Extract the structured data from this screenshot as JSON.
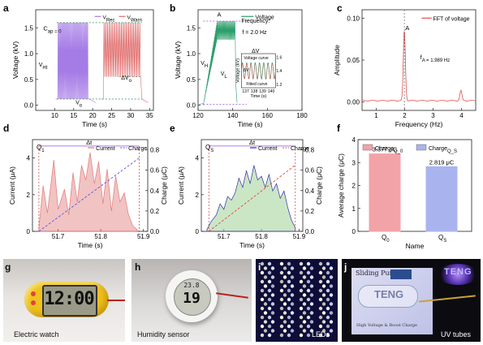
{
  "panels": {
    "a": {
      "letter": "a"
    },
    "b": {
      "letter": "b"
    },
    "c": {
      "letter": "c"
    },
    "d": {
      "letter": "d"
    },
    "e": {
      "letter": "e"
    },
    "f": {
      "letter": "f"
    },
    "g": {
      "letter": "g",
      "caption": "Electric watch",
      "display": "12:00"
    },
    "h": {
      "letter": "h",
      "caption": "Humidity sensor",
      "display_top": "23.8",
      "display_main": "19"
    },
    "i": {
      "letter": "i",
      "caption": "LEDs"
    },
    "j": {
      "letter": "j",
      "caption": "UV tubes",
      "card_title": "Sliding Pump",
      "card_seal": "TENG",
      "card_footer": "High Voltage & Boost Charge",
      "tube_label": "TENG"
    }
  },
  "chart_data": [
    {
      "id": "a",
      "type": "line",
      "xlabel": "Time (s)",
      "ylabel": "Voltage (kV)",
      "xlim": [
        5,
        36
      ],
      "ylim": [
        -0.1,
        1.85
      ],
      "xticks": [
        "10",
        "15",
        "20",
        "25",
        "30",
        "35"
      ],
      "yticks": [
        "0.0",
        "0.5",
        "1.0",
        "1.5"
      ],
      "series": [
        {
          "name": "V_Rec",
          "color": "#a57ce6",
          "segment": [
            10.8,
            18.8
          ],
          "baseline": 0.12,
          "peak": 1.6,
          "cycles": 40
        },
        {
          "name": "V_Warn",
          "color": "#e06a6a",
          "segment": [
            22.8,
            32.6
          ],
          "baseline": 0.55,
          "peak": 1.6,
          "cycles": 30
        }
      ],
      "annotations": [
        "C_ap = 0",
        "V_Ht",
        "V_o",
        "ΔV_o"
      ]
    },
    {
      "id": "b",
      "type": "line",
      "xlabel": "Time (s)",
      "ylabel": "Voltage (kV)",
      "xlim": [
        120,
        180
      ],
      "ylim": [
        -0.1,
        1.85
      ],
      "xticks": [
        "120",
        "140",
        "160",
        "180"
      ],
      "yticks": [
        "0.0",
        "0.5",
        "1.0",
        "1.5"
      ],
      "series": [
        {
          "name": "Voltage",
          "color": "#2e9e6b",
          "rise_start": 123.0,
          "rise_end": 131.0,
          "plateau": 1.45,
          "amplitude": 0.18,
          "end": 141.5
        }
      ],
      "annotations": [
        "A",
        "Frequency:",
        "f = 2.0 Hz",
        "ΔV",
        "V_H",
        "V_L"
      ],
      "inset": {
        "xlabel": "Time (s)",
        "ylabel": "Voltage (kV)",
        "xticks": [
          "137",
          "138",
          "139",
          "140"
        ],
        "yticks": [
          "1.2",
          "1.4",
          "1.6"
        ],
        "xlim": [
          136.5,
          140.5
        ],
        "ylim": [
          1.15,
          1.65
        ],
        "legend": [
          "Voltage curve",
          "Fitted curve"
        ],
        "annotation": "ΔV"
      }
    },
    {
      "id": "c",
      "type": "line",
      "xlabel": "Frequency (Hz)",
      "ylabel": "Amplitude",
      "xlim": [
        0.5,
        4.5
      ],
      "ylim": [
        -0.01,
        0.11
      ],
      "xticks": [
        "1",
        "2",
        "3",
        "4"
      ],
      "yticks": [
        "0.00",
        "0.05",
        "0.10"
      ],
      "series": [
        {
          "name": "FFT of voltage",
          "color": "#e05050",
          "peaks": [
            [
              1.989,
              0.085
            ],
            [
              3.98,
              0.012
            ]
          ]
        }
      ],
      "annotations": [
        "A",
        "f_A = 1.989 Hz"
      ]
    },
    {
      "id": "d",
      "type": "area",
      "xlabel": "Time (s)",
      "ylabel": "Current (μA)",
      "y2label": "Charge (μC)",
      "xlim": [
        51.64,
        51.91
      ],
      "ylim": [
        0,
        5
      ],
      "y2lim": [
        0,
        0.9
      ],
      "xticks": [
        "51.7",
        "51.8",
        "51.9"
      ],
      "yticks": [
        "0",
        "2",
        "4"
      ],
      "y2ticks": [
        "0.0",
        "0.2",
        "0.4",
        "0.6",
        "0.8"
      ],
      "series": [
        {
          "name": "Current",
          "color": "#e07a7a",
          "values": [
            [
              51.655,
              0.2
            ],
            [
              51.665,
              2.5
            ],
            [
              51.675,
              1.0
            ],
            [
              51.69,
              3.9
            ],
            [
              51.7,
              1.2
            ],
            [
              51.715,
              2.3
            ],
            [
              51.725,
              0.9
            ],
            [
              51.735,
              3.2
            ],
            [
              51.745,
              1.6
            ],
            [
              51.755,
              3.6
            ],
            [
              51.765,
              2.8
            ],
            [
              51.775,
              4.3
            ],
            [
              51.785,
              2.6
            ],
            [
              51.795,
              3.8
            ],
            [
              51.805,
              1.5
            ],
            [
              51.815,
              3.4
            ],
            [
              51.825,
              1.1
            ],
            [
              51.835,
              3.0
            ],
            [
              51.845,
              1.6
            ],
            [
              51.855,
              2.1
            ],
            [
              51.865,
              0.9
            ],
            [
              51.875,
              0.3
            ],
            [
              51.885,
              0.1
            ]
          ]
        },
        {
          "name": "Charge",
          "color": "#5a5ae0",
          "from": [
            51.655,
            0.0
          ],
          "to": [
            51.89,
            0.72
          ]
        }
      ],
      "annotations": [
        "Q_1",
        "Δt"
      ]
    },
    {
      "id": "e",
      "type": "area",
      "xlabel": "Time (s)",
      "ylabel": "Current (μA)",
      "y2label": "Charge (μC)",
      "xlim": [
        51.64,
        51.91
      ],
      "ylim": [
        0,
        5
      ],
      "y2lim": [
        0,
        0.9
      ],
      "xticks": [
        "51.7",
        "51.8",
        "51.9"
      ],
      "yticks": [
        "0",
        "2",
        "4"
      ],
      "y2ticks": [
        "0.0",
        "0.2",
        "0.4",
        "0.6",
        "0.8"
      ],
      "series": [
        {
          "name": "Current",
          "color": "#3030a0",
          "values": [
            [
              51.655,
              0.1
            ],
            [
              51.665,
              0.5
            ],
            [
              51.68,
              0.9
            ],
            [
              51.69,
              1.5
            ],
            [
              51.7,
              1.2
            ],
            [
              51.71,
              1.9
            ],
            [
              51.72,
              1.7
            ],
            [
              51.73,
              2.1
            ],
            [
              51.74,
              2.9
            ],
            [
              51.75,
              2.4
            ],
            [
              51.76,
              3.3
            ],
            [
              51.77,
              2.6
            ],
            [
              51.78,
              3.6
            ],
            [
              51.79,
              2.8
            ],
            [
              51.8,
              3.0
            ],
            [
              51.81,
              2.4
            ],
            [
              51.82,
              3.1
            ],
            [
              51.83,
              2.2
            ],
            [
              51.84,
              2.6
            ],
            [
              51.85,
              1.8
            ],
            [
              51.86,
              2.2
            ],
            [
              51.87,
              1.3
            ],
            [
              51.88,
              0.6
            ],
            [
              51.89,
              0.2
            ]
          ]
        },
        {
          "name": "Charge",
          "color": "#e04a4a",
          "from": [
            51.66,
            0.0
          ],
          "to": [
            51.89,
            0.65
          ]
        }
      ],
      "annotations": [
        "Q_S",
        "Δt"
      ]
    },
    {
      "id": "f",
      "type": "bar",
      "xlabel": "Name",
      "ylabel": "Average charge (μC)",
      "ylim": [
        0,
        4
      ],
      "yticks": [
        "0",
        "1",
        "2",
        "3",
        "4"
      ],
      "categories": [
        "Q_0",
        "Q_S"
      ],
      "values": [
        3.377,
        2.819
      ],
      "value_labels": [
        "3.377 μC",
        "2.819 μC"
      ],
      "series_names": [
        "Charge_Q_0",
        "Charge_Q_S"
      ],
      "colors": [
        "#f2a3a8",
        "#a9b4ef"
      ]
    }
  ]
}
